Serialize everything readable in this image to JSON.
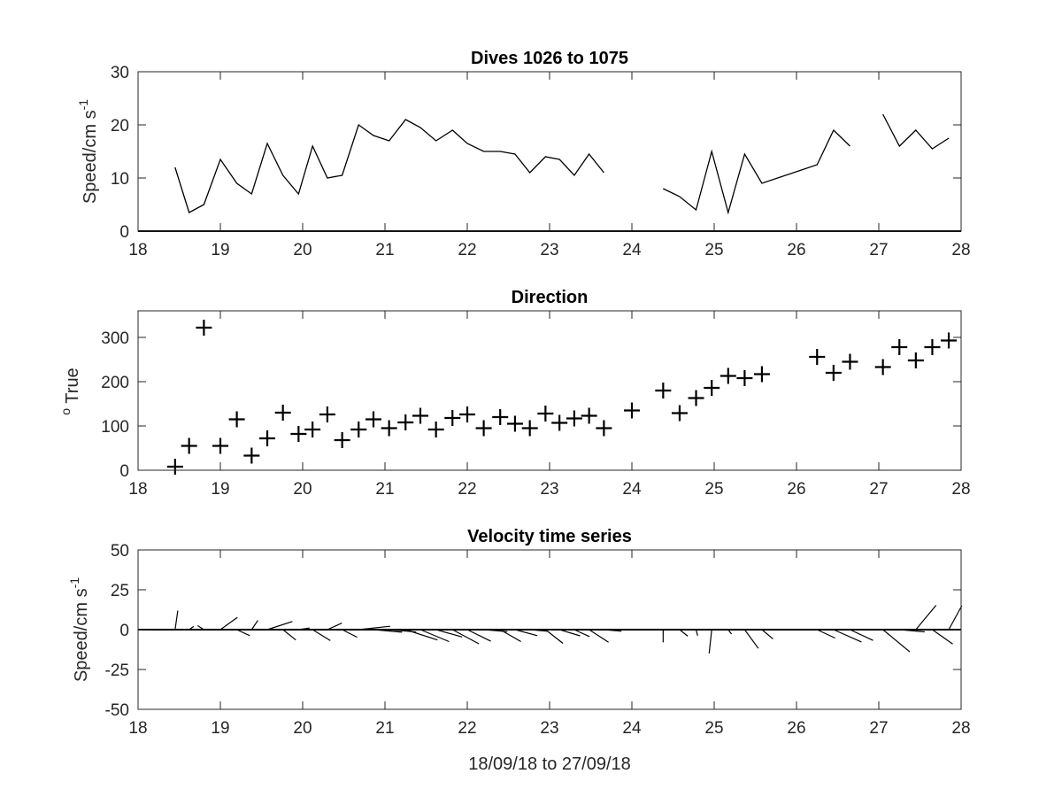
{
  "chart_data": [
    {
      "type": "line",
      "title": "Dives 1026 to 1075",
      "ylabel_main": "Speed/cm s",
      "ylabel_sup": "-1",
      "xlabel": "",
      "xlim": [
        18,
        28
      ],
      "ylim": [
        0,
        30
      ],
      "xticks": [
        18,
        19,
        20,
        21,
        22,
        23,
        24,
        25,
        26,
        27,
        28
      ],
      "yticks": [
        0,
        10,
        20,
        30
      ],
      "baseline": 0,
      "segments": [
        [
          [
            18.45,
            12
          ],
          [
            18.62,
            3.5
          ],
          [
            18.8,
            5
          ],
          [
            19.0,
            13.5
          ],
          [
            19.2,
            9
          ],
          [
            19.38,
            7
          ],
          [
            19.57,
            16.5
          ],
          [
            19.76,
            10.5
          ],
          [
            19.95,
            7
          ],
          [
            20.12,
            16
          ],
          [
            20.3,
            10
          ],
          [
            20.48,
            10.5
          ],
          [
            20.68,
            20
          ],
          [
            20.86,
            18
          ],
          [
            21.05,
            17
          ],
          [
            21.25,
            21
          ],
          [
            21.43,
            19.5
          ],
          [
            21.62,
            17
          ],
          [
            21.82,
            19
          ],
          [
            22.0,
            16.5
          ],
          [
            22.2,
            15
          ],
          [
            22.4,
            15
          ],
          [
            22.58,
            14.5
          ],
          [
            22.76,
            11
          ],
          [
            22.95,
            14
          ],
          [
            23.12,
            13.5
          ],
          [
            23.3,
            10.5
          ],
          [
            23.48,
            14.5
          ],
          [
            23.66,
            11
          ]
        ],
        [
          [
            24.38,
            8
          ],
          [
            24.58,
            6.5
          ],
          [
            24.78,
            4
          ],
          [
            24.97,
            15
          ],
          [
            25.17,
            3.5
          ],
          [
            25.37,
            14.5
          ],
          [
            25.58,
            9
          ],
          [
            26.25,
            12.5
          ],
          [
            26.45,
            19
          ],
          [
            26.65,
            16
          ]
        ],
        [
          [
            27.05,
            22
          ],
          [
            27.25,
            16
          ],
          [
            27.45,
            19
          ],
          [
            27.65,
            15.5
          ],
          [
            27.85,
            17.5
          ]
        ]
      ]
    },
    {
      "type": "scatter",
      "title": "Direction",
      "ylabel_sup": "o",
      "ylabel_main": " True",
      "xlabel": "",
      "xlim": [
        18,
        28
      ],
      "ylim": [
        0,
        360
      ],
      "xticks": [
        18,
        19,
        20,
        21,
        22,
        23,
        24,
        25,
        26,
        27,
        28
      ],
      "yticks": [
        0,
        100,
        200,
        300
      ],
      "marker": "+",
      "points": [
        [
          18.45,
          8
        ],
        [
          18.62,
          55
        ],
        [
          18.8,
          322
        ],
        [
          19.0,
          55
        ],
        [
          19.2,
          115
        ],
        [
          19.38,
          33
        ],
        [
          19.57,
          72
        ],
        [
          19.76,
          130
        ],
        [
          19.95,
          82
        ],
        [
          20.12,
          92
        ],
        [
          20.3,
          126
        ],
        [
          20.48,
          68
        ],
        [
          20.68,
          92
        ],
        [
          20.86,
          115
        ],
        [
          21.05,
          95
        ],
        [
          21.25,
          108
        ],
        [
          21.43,
          123
        ],
        [
          21.62,
          92
        ],
        [
          21.82,
          118
        ],
        [
          22.0,
          126
        ],
        [
          22.2,
          95
        ],
        [
          22.4,
          120
        ],
        [
          22.58,
          105
        ],
        [
          22.76,
          95
        ],
        [
          22.95,
          128
        ],
        [
          23.12,
          107
        ],
        [
          23.3,
          117
        ],
        [
          23.48,
          123
        ],
        [
          23.66,
          95
        ],
        [
          24.0,
          135
        ],
        [
          24.38,
          180
        ],
        [
          24.58,
          129
        ],
        [
          24.78,
          163
        ],
        [
          24.97,
          186
        ],
        [
          25.17,
          213
        ],
        [
          25.37,
          208
        ],
        [
          25.58,
          217
        ],
        [
          26.25,
          256
        ],
        [
          26.45,
          220
        ],
        [
          26.65,
          245
        ],
        [
          27.05,
          233
        ],
        [
          27.25,
          278
        ],
        [
          27.45,
          248
        ],
        [
          27.65,
          278
        ],
        [
          27.85,
          293
        ]
      ]
    },
    {
      "type": "quiver",
      "title": "Velocity time series",
      "ylabel_main": "Speed/cm s",
      "ylabel_sup": "-1",
      "xlabel": "18/09/18 to 27/09/18",
      "xlim": [
        18,
        28
      ],
      "ylim": [
        -50,
        50
      ],
      "xticks": [
        18,
        19,
        20,
        21,
        22,
        23,
        24,
        25,
        26,
        27,
        28
      ],
      "yticks": [
        -50,
        -25,
        0,
        25,
        50
      ],
      "baseline": 0,
      "note_units": "vectors: x = time (days), components u (east) and v (north) in cm s-1",
      "vectors": [
        [
          18.45,
          1.7,
          11.9
        ],
        [
          18.62,
          2.9,
          2.0
        ],
        [
          18.8,
          -3.9,
          2.5
        ],
        [
          19.0,
          10.7,
          7.7
        ],
        [
          19.2,
          8.1,
          -3.8
        ],
        [
          19.38,
          3.9,
          5.8
        ],
        [
          19.57,
          15.8,
          5.1
        ],
        [
          19.76,
          8.1,
          -6.5
        ],
        [
          19.95,
          6.9,
          1.0
        ],
        [
          20.12,
          11.2,
          -6.9
        ],
        [
          20.3,
          9.1,
          4.1
        ],
        [
          20.48,
          9.4,
          -4.8
        ],
        [
          20.68,
          19.8,
          2.1
        ],
        [
          20.86,
          17.9,
          -1.6
        ],
        [
          21.05,
          17.0,
          -1.5
        ],
        [
          21.25,
          20.0,
          -6.5
        ],
        [
          21.43,
          18.0,
          -7.5
        ],
        [
          21.62,
          16.4,
          -4.6
        ],
        [
          21.82,
          16.6,
          -8.9
        ],
        [
          22.0,
          14.8,
          -7.3
        ],
        [
          22.2,
          14.9,
          -1.3
        ],
        [
          22.4,
          13.0,
          -7.5
        ],
        [
          22.58,
          14.0,
          -3.8
        ],
        [
          22.76,
          10.9,
          -1.0
        ],
        [
          22.95,
          11.0,
          -8.6
        ],
        [
          23.12,
          12.9,
          -3.9
        ],
        [
          23.3,
          9.6,
          -4.4
        ],
        [
          23.48,
          12.2,
          -7.9
        ],
        [
          23.66,
          11.0,
          -1.0
        ],
        [
          24.38,
          0.0,
          -8.0
        ],
        [
          24.58,
          5.1,
          -4.1
        ],
        [
          24.78,
          1.0,
          -3.8
        ],
        [
          24.97,
          -1.6,
          -14.9
        ],
        [
          25.17,
          2.1,
          -2.8
        ],
        [
          25.37,
          8.6,
          -11.8
        ],
        [
          25.58,
          6.9,
          -5.8
        ],
        [
          26.25,
          11.3,
          -5.3
        ],
        [
          26.45,
          17.5,
          -7.7
        ],
        [
          26.65,
          14.5,
          -6.8
        ],
        [
          27.05,
          16.9,
          -14.0
        ],
        [
          27.25,
          15.9,
          -1.4
        ],
        [
          27.45,
          12.7,
          15.3
        ],
        [
          27.65,
          12.8,
          -9.0
        ],
        [
          27.85,
          8.2,
          15.0
        ]
      ]
    }
  ]
}
